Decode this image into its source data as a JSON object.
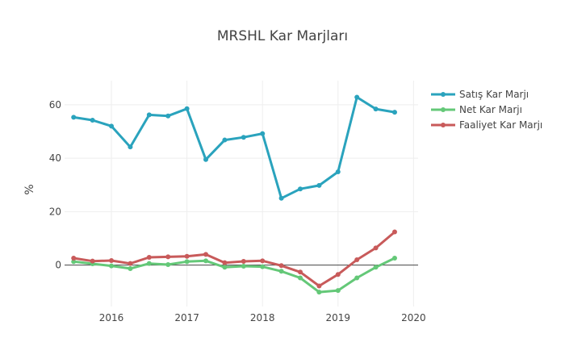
{
  "chart_data": {
    "type": "line",
    "title": "MRSHL Kar Marjları",
    "ylabel": "%",
    "xlabel": "",
    "xlim": [
      2015.38,
      2020.06
    ],
    "ylim": [
      -15.5,
      69
    ],
    "x_ticks": [
      2016,
      2017,
      2018,
      2019,
      2020
    ],
    "x_tick_labels": [
      "2016",
      "2017",
      "2018",
      "2019",
      "2020"
    ],
    "y_ticks": [
      0,
      20,
      40,
      60
    ],
    "y_tick_labels": [
      "0",
      "20",
      "40",
      "60"
    ],
    "grid": true,
    "zero_line": true,
    "legend_position": "top-right",
    "x": [
      2015.5,
      2015.75,
      2016.0,
      2016.25,
      2016.5,
      2016.75,
      2017.0,
      2017.25,
      2017.5,
      2017.75,
      2018.0,
      2018.25,
      2018.5,
      2018.75,
      2019.0,
      2019.25,
      2019.5,
      2019.75
    ],
    "series": [
      {
        "name": "Satış Kar Marjı",
        "color": "#2aa3bd",
        "values": [
          55.3,
          54.2,
          52.0,
          44.2,
          56.2,
          55.8,
          58.5,
          39.5,
          46.8,
          47.8,
          49.2,
          25.0,
          28.5,
          29.8,
          34.9,
          62.8,
          58.4,
          57.2
        ]
      },
      {
        "name": "Net Kar Marjı",
        "color": "#64c878",
        "values": [
          1.3,
          0.5,
          -0.3,
          -1.3,
          0.6,
          0.2,
          1.3,
          1.6,
          -0.8,
          -0.4,
          -0.6,
          -2.3,
          -4.8,
          -10.1,
          -9.5,
          -4.8,
          -0.8,
          2.6
        ]
      },
      {
        "name": "Faaliyet Kar Marjı",
        "color": "#c85a5a",
        "values": [
          2.6,
          1.5,
          1.7,
          0.6,
          2.9,
          3.1,
          3.3,
          4.0,
          0.9,
          1.4,
          1.6,
          -0.2,
          -2.6,
          -7.8,
          -3.5,
          2.0,
          6.4,
          12.4
        ]
      }
    ]
  }
}
